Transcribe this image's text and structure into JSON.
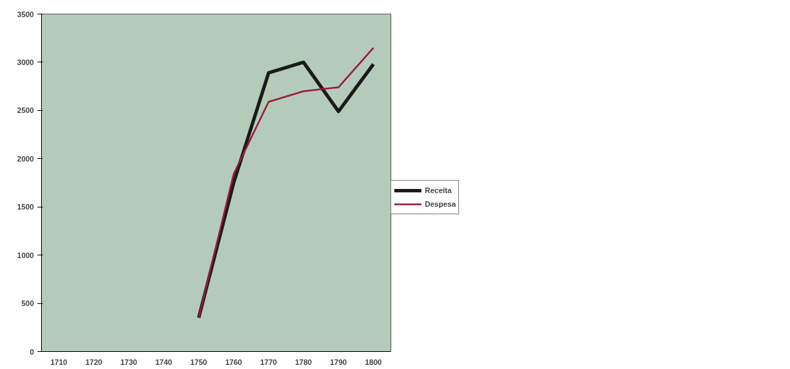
{
  "chart_data": {
    "type": "line",
    "categories": [
      "1710",
      "1720",
      "1730",
      "1740",
      "1750",
      "1760",
      "1770",
      "1780",
      "1790",
      "1800"
    ],
    "series": [
      {
        "name": "Receita",
        "color": "#1a1a1a",
        "values": [
          null,
          null,
          null,
          null,
          350,
          1750,
          2890,
          3000,
          2490,
          2980
        ]
      },
      {
        "name": "Despesa",
        "color": "#9b1b3a",
        "values": [
          null,
          null,
          null,
          null,
          350,
          1840,
          2590,
          2700,
          2740,
          3150
        ]
      }
    ],
    "ylim": [
      0,
      3500
    ],
    "yticks": [
      0,
      500,
      1000,
      1500,
      2000,
      2500,
      3000,
      3500
    ],
    "grid": false,
    "legend": "right",
    "marker": "none",
    "line_style": "solid"
  }
}
